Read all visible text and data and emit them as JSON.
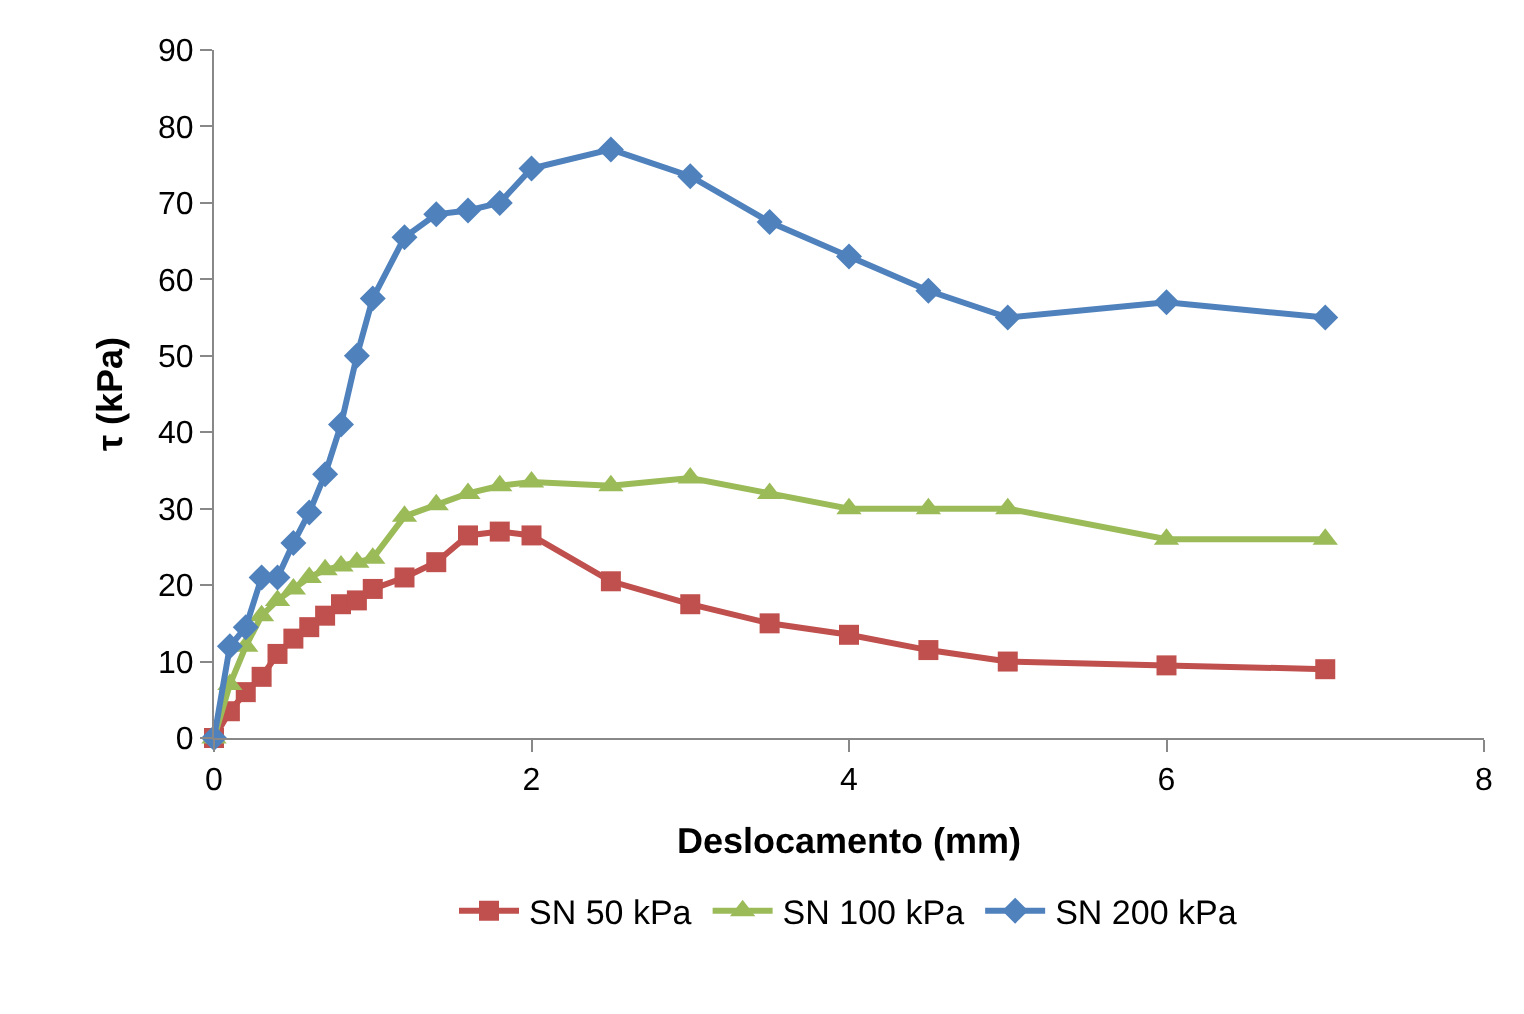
{
  "chart_data": {
    "type": "line",
    "xlabel": "Deslocamento (mm)",
    "ylabel": "τ (kPa)",
    "x": [
      0,
      0.1,
      0.2,
      0.3,
      0.4,
      0.5,
      0.6,
      0.7,
      0.8,
      0.9,
      1.0,
      1.2,
      1.4,
      1.6,
      1.8,
      2,
      2.5,
      3,
      3.5,
      4,
      4.5,
      5,
      6,
      7
    ],
    "series": [
      {
        "name": "SN 50 kPa",
        "color": "#c0504d",
        "marker": "square",
        "values": [
          0,
          3.5,
          6,
          8,
          11,
          13,
          14.5,
          16,
          17.5,
          18,
          19.5,
          21,
          23,
          26.5,
          27,
          26.5,
          20.5,
          17.5,
          15,
          13.5,
          11.5,
          10,
          9.5,
          9
        ]
      },
      {
        "name": "SN 100 kPa",
        "color": "#9bbb59",
        "marker": "triangle",
        "values": [
          0,
          7,
          12,
          16,
          18,
          19.5,
          21,
          22,
          22.5,
          23,
          23.5,
          29,
          30.5,
          32,
          33,
          33.5,
          33,
          34,
          32,
          30,
          30,
          30,
          26,
          26
        ]
      },
      {
        "name": "SN 200 kPa",
        "color": "#4f81bd",
        "marker": "diamond",
        "values": [
          0,
          12,
          14.5,
          21,
          21,
          25.5,
          29.5,
          34.5,
          41,
          50,
          57.5,
          65.5,
          68.5,
          69,
          70,
          74.5,
          77,
          73.5,
          67.5,
          63,
          58.5,
          55,
          57,
          55
        ]
      }
    ],
    "xlim": [
      0,
      8
    ],
    "xticks": [
      0,
      2,
      4,
      6,
      8
    ],
    "ylim": [
      0,
      90
    ],
    "yticks": [
      0,
      10,
      20,
      30,
      40,
      50,
      60,
      70,
      80,
      90
    ],
    "grid": false,
    "legend": "bottom",
    "line_style": "solid"
  }
}
